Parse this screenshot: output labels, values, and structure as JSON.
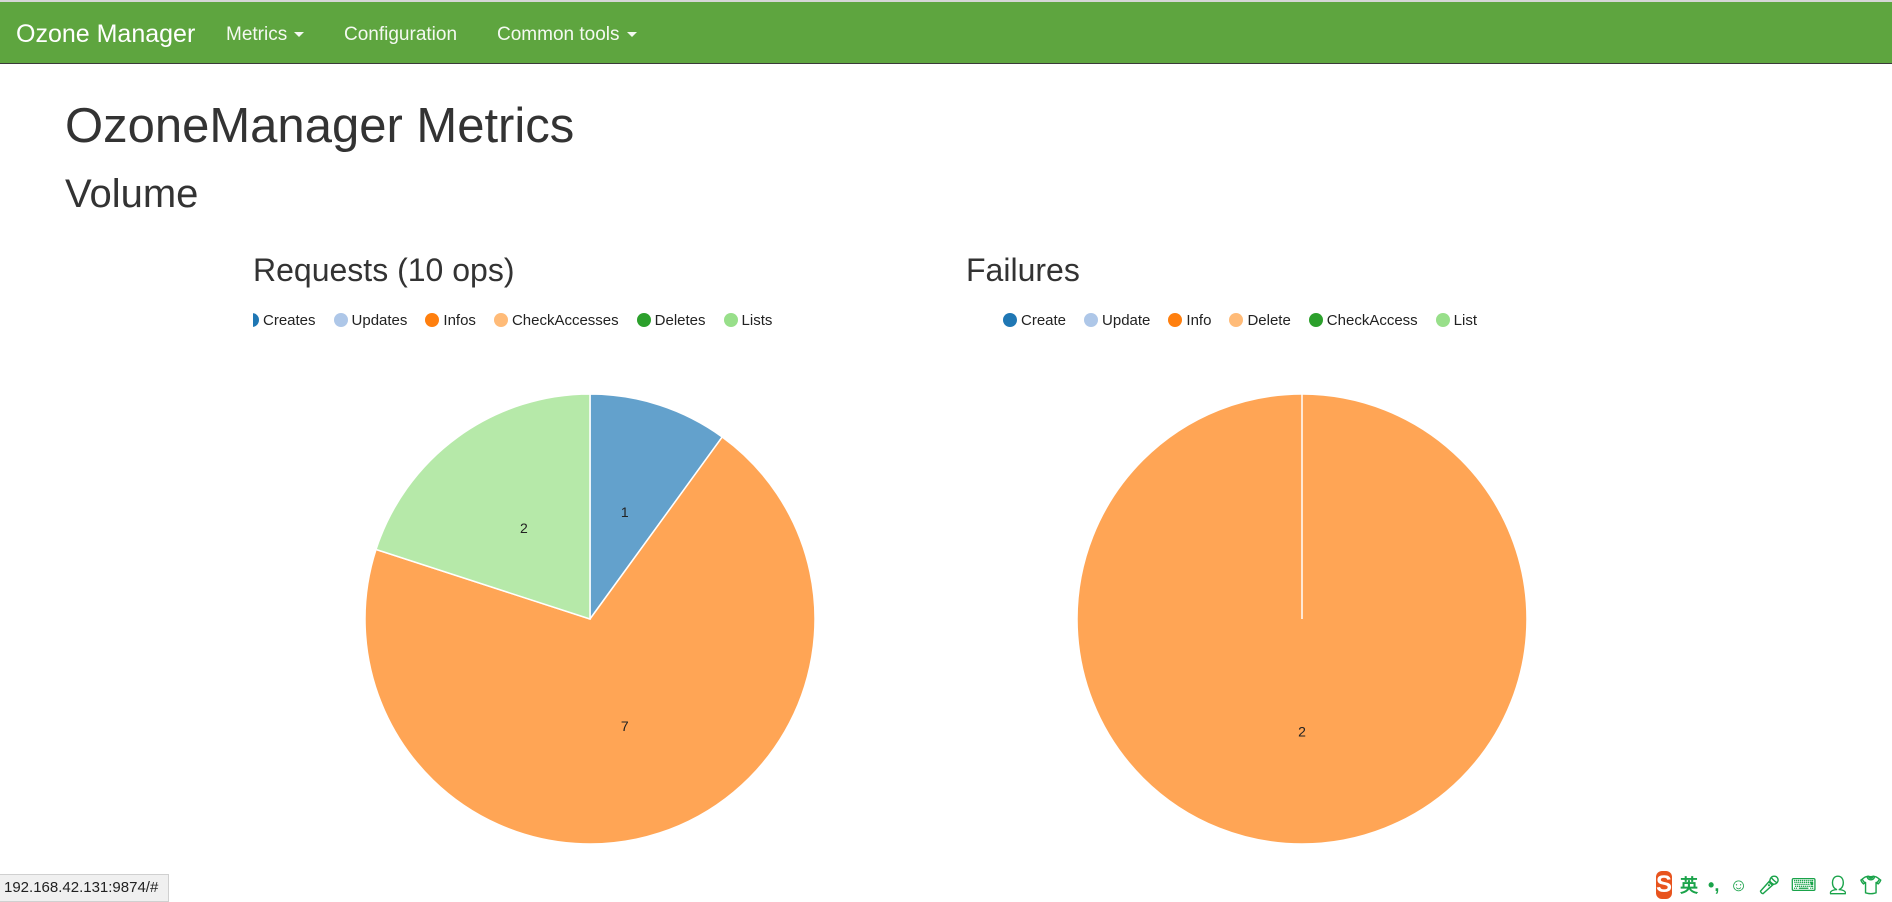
{
  "navbar": {
    "brand": "Ozone Manager",
    "items": [
      {
        "label": "Metrics",
        "dropdown": true
      },
      {
        "label": "Configuration",
        "dropdown": false
      },
      {
        "label": "Common tools",
        "dropdown": true
      }
    ]
  },
  "page": {
    "title": "OzoneManager Metrics",
    "section": "Volume"
  },
  "chart_data": [
    {
      "type": "pie",
      "title": "Requests (10 ops)",
      "legend": [
        "Creates",
        "Updates",
        "Infos",
        "CheckAccesses",
        "Deletes",
        "Lists"
      ],
      "colors": [
        "#1f77b4",
        "#aec7e8",
        "#ff7f0e",
        "#ffbb78",
        "#2ca02c",
        "#98df8a"
      ],
      "slices": [
        {
          "label": "Creates",
          "value": 1,
          "color": "#63a1cc"
        },
        {
          "label": "CheckAccesses",
          "value": 7,
          "color": "#ffa555"
        },
        {
          "label": "Lists",
          "value": 2,
          "color": "#b6e9a9"
        }
      ]
    },
    {
      "type": "pie",
      "title": "Failures",
      "legend": [
        "Create",
        "Update",
        "Info",
        "Delete",
        "CheckAccess",
        "List"
      ],
      "colors": [
        "#1f77b4",
        "#aec7e8",
        "#ff7f0e",
        "#ffbb78",
        "#2ca02c",
        "#98df8a"
      ],
      "slices": [
        {
          "label": "Delete",
          "value": 2,
          "color": "#ffa555"
        }
      ]
    }
  ],
  "status_bar": {
    "url": "192.168.42.131:9874/#"
  },
  "ime": {
    "logo": "S",
    "mode": "英",
    "icons": [
      "punctuation-icon",
      "emoji-icon",
      "microphone-icon",
      "keyboard-icon",
      "user-icon",
      "skin-icon"
    ]
  }
}
